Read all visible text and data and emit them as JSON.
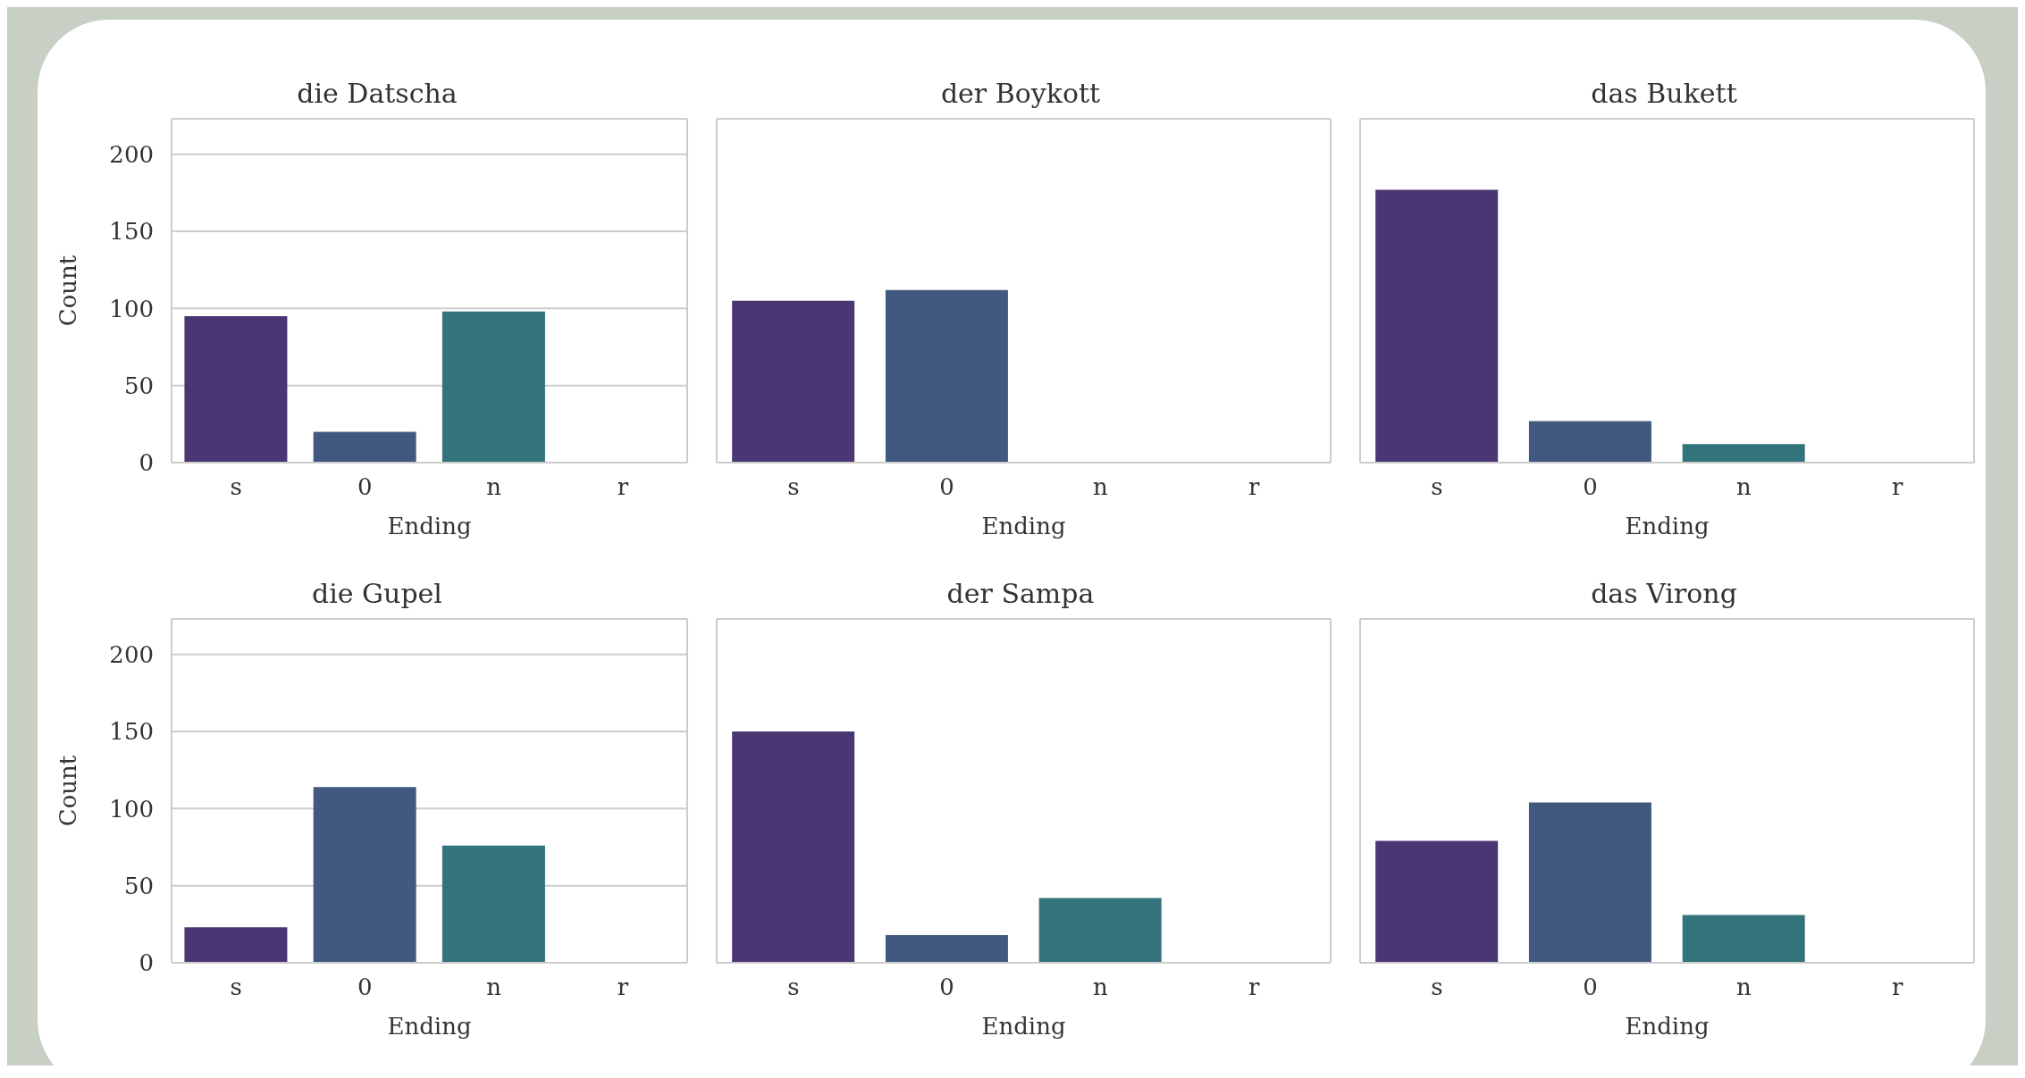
{
  "chart_data": [
    {
      "type": "bar",
      "title": "die Datscha",
      "xlabel": "Ending",
      "ylabel": "Count",
      "categories": [
        "s",
        "0",
        "n",
        "r"
      ],
      "values": [
        95,
        20,
        98,
        0
      ],
      "colors": [
        "#4a3672",
        "#41597f",
        "#33737b",
        "#2a8a80"
      ],
      "ylim": [
        0,
        223
      ],
      "yticks": [
        0,
        50,
        100,
        150,
        200
      ],
      "grid": "y"
    },
    {
      "type": "bar",
      "title": "der Boykott",
      "xlabel": "Ending",
      "categories": [
        "s",
        "0",
        "n",
        "r"
      ],
      "values": [
        105,
        112,
        0,
        0
      ],
      "colors": [
        "#4a3672",
        "#41597f",
        "#33737b",
        "#2a8a80"
      ],
      "ylim": [
        0,
        223
      ],
      "yticks": [
        0,
        50,
        100,
        150,
        200
      ],
      "grid": "y",
      "tick_labels": "x"
    },
    {
      "type": "bar",
      "title": "das Bukett",
      "xlabel": "Ending",
      "categories": [
        "s",
        "0",
        "n",
        "r"
      ],
      "values": [
        177,
        27,
        12,
        0
      ],
      "colors": [
        "#4a3672",
        "#41597f",
        "#33737b",
        "#2a8a80"
      ],
      "ylim": [
        0,
        223
      ],
      "yticks": [
        0,
        50,
        100,
        150,
        200
      ],
      "grid": "y",
      "tick_labels": "x"
    },
    {
      "type": "bar",
      "title": "die Gupel",
      "xlabel": "Ending",
      "ylabel": "Count",
      "categories": [
        "s",
        "0",
        "n",
        "r"
      ],
      "values": [
        23,
        114,
        76,
        0
      ],
      "colors": [
        "#4a3672",
        "#41597f",
        "#33737b",
        "#2a8a80"
      ],
      "ylim": [
        0,
        223
      ],
      "yticks": [
        0,
        50,
        100,
        150,
        200
      ],
      "grid": "y"
    },
    {
      "type": "bar",
      "title": "der Sampa",
      "xlabel": "Ending",
      "categories": [
        "s",
        "0",
        "n",
        "r"
      ],
      "values": [
        150,
        18,
        42,
        0
      ],
      "colors": [
        "#4a3672",
        "#41597f",
        "#33737b",
        "#2a8a80"
      ],
      "ylim": [
        0,
        223
      ],
      "yticks": [
        0,
        50,
        100,
        150,
        200
      ],
      "grid": "y",
      "tick_labels": "x"
    },
    {
      "type": "bar",
      "title": "das Virong",
      "xlabel": "Ending",
      "categories": [
        "s",
        "0",
        "n",
        "r"
      ],
      "values": [
        79,
        104,
        31,
        0
      ],
      "colors": [
        "#4a3672",
        "#41597f",
        "#33737b",
        "#2a8a80"
      ],
      "ylim": [
        0,
        223
      ],
      "yticks": [
        0,
        50,
        100,
        150,
        200
      ],
      "grid": "y",
      "tick_labels": "x"
    }
  ]
}
